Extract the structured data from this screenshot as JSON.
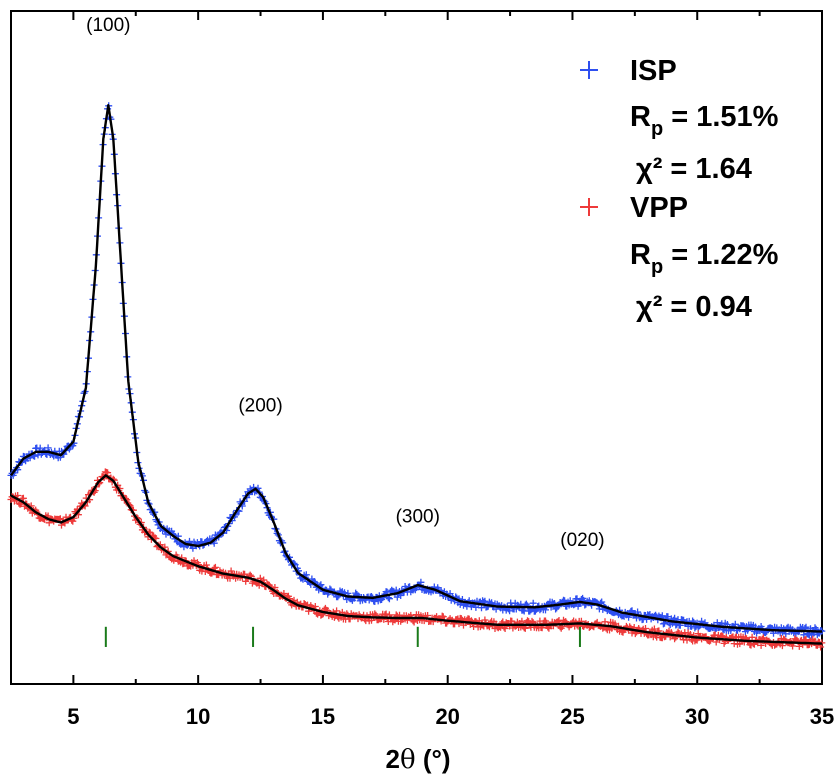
{
  "chart_data": {
    "type": "line",
    "xlabel_main": "2",
    "xlabel_theta": "θ",
    "xlabel_unit": " (°)",
    "xlim": [
      2.5,
      35
    ],
    "x_ticks": [
      5,
      10,
      15,
      20,
      25,
      30,
      35
    ],
    "y_ticks_shown": false,
    "grid": false,
    "legend_placement": "top-right",
    "series": [
      {
        "name": "ISP",
        "color": "#2e4ff0",
        "fit_color": "#000000",
        "marker": "plus",
        "stats": {
          "rp_label": "R",
          "rp_sub": "p",
          "rp_value": " = 1.51%",
          "chi_label": "χ² = 1.64"
        },
        "points": [
          [
            2.5,
            0.31
          ],
          [
            3.0,
            0.335
          ],
          [
            3.5,
            0.345
          ],
          [
            4.0,
            0.345
          ],
          [
            4.5,
            0.34
          ],
          [
            5.0,
            0.36
          ],
          [
            5.5,
            0.44
          ],
          [
            5.9,
            0.62
          ],
          [
            6.2,
            0.81
          ],
          [
            6.4,
            0.86
          ],
          [
            6.6,
            0.81
          ],
          [
            6.9,
            0.63
          ],
          [
            7.2,
            0.45
          ],
          [
            7.6,
            0.33
          ],
          [
            8.0,
            0.27
          ],
          [
            8.5,
            0.235
          ],
          [
            9.0,
            0.22
          ],
          [
            9.5,
            0.208
          ],
          [
            10.0,
            0.205
          ],
          [
            10.5,
            0.21
          ],
          [
            11.0,
            0.225
          ],
          [
            11.5,
            0.255
          ],
          [
            12.0,
            0.283
          ],
          [
            12.3,
            0.29
          ],
          [
            12.6,
            0.278
          ],
          [
            13.0,
            0.243
          ],
          [
            13.5,
            0.195
          ],
          [
            14.0,
            0.165
          ],
          [
            15.0,
            0.14
          ],
          [
            16.0,
            0.13
          ],
          [
            17.0,
            0.128
          ],
          [
            18.0,
            0.135
          ],
          [
            18.8,
            0.147
          ],
          [
            19.5,
            0.14
          ],
          [
            20.5,
            0.123
          ],
          [
            22.0,
            0.115
          ],
          [
            23.5,
            0.114
          ],
          [
            24.5,
            0.118
          ],
          [
            25.3,
            0.122
          ],
          [
            26.0,
            0.118
          ],
          [
            27.0,
            0.106
          ],
          [
            29.0,
            0.093
          ],
          [
            31.0,
            0.085
          ],
          [
            33.0,
            0.08
          ],
          [
            35.0,
            0.078
          ]
        ]
      },
      {
        "name": "VPP",
        "color": "#ee3a3a",
        "fit_color": "#000000",
        "marker": "plus",
        "stats": {
          "rp_label": "R",
          "rp_sub": "p",
          "rp_value": " = 1.22%",
          "chi_label": "χ² = 0.94"
        },
        "points": [
          [
            2.5,
            0.28
          ],
          [
            3.0,
            0.27
          ],
          [
            3.5,
            0.255
          ],
          [
            4.0,
            0.245
          ],
          [
            4.5,
            0.24
          ],
          [
            5.0,
            0.248
          ],
          [
            5.5,
            0.27
          ],
          [
            6.0,
            0.3
          ],
          [
            6.3,
            0.31
          ],
          [
            6.6,
            0.302
          ],
          [
            7.0,
            0.278
          ],
          [
            7.5,
            0.248
          ],
          [
            8.0,
            0.222
          ],
          [
            8.5,
            0.203
          ],
          [
            9.0,
            0.19
          ],
          [
            10.0,
            0.175
          ],
          [
            11.0,
            0.164
          ],
          [
            12.0,
            0.158
          ],
          [
            12.5,
            0.152
          ],
          [
            13.0,
            0.14
          ],
          [
            13.5,
            0.127
          ],
          [
            14.0,
            0.117
          ],
          [
            15.0,
            0.107
          ],
          [
            16.0,
            0.101
          ],
          [
            17.0,
            0.099
          ],
          [
            18.0,
            0.098
          ],
          [
            19.0,
            0.098
          ],
          [
            20.0,
            0.094
          ],
          [
            22.0,
            0.088
          ],
          [
            24.0,
            0.088
          ],
          [
            25.3,
            0.09
          ],
          [
            26.5,
            0.086
          ],
          [
            28.0,
            0.077
          ],
          [
            30.0,
            0.069
          ],
          [
            32.0,
            0.064
          ],
          [
            35.0,
            0.06
          ]
        ]
      }
    ],
    "peak_labels": [
      {
        "text": "(100)",
        "x": 6.4,
        "y": 0.97
      },
      {
        "text": "(200)",
        "x": 12.5,
        "y": 0.405
      },
      {
        "text": "(300)",
        "x": 18.8,
        "y": 0.24
      },
      {
        "text": "(020)",
        "x": 25.4,
        "y": 0.205
      }
    ],
    "reflection_ticks": [
      6.3,
      12.2,
      18.8,
      25.3
    ],
    "reflection_tick_color": "#1a7a1a"
  }
}
